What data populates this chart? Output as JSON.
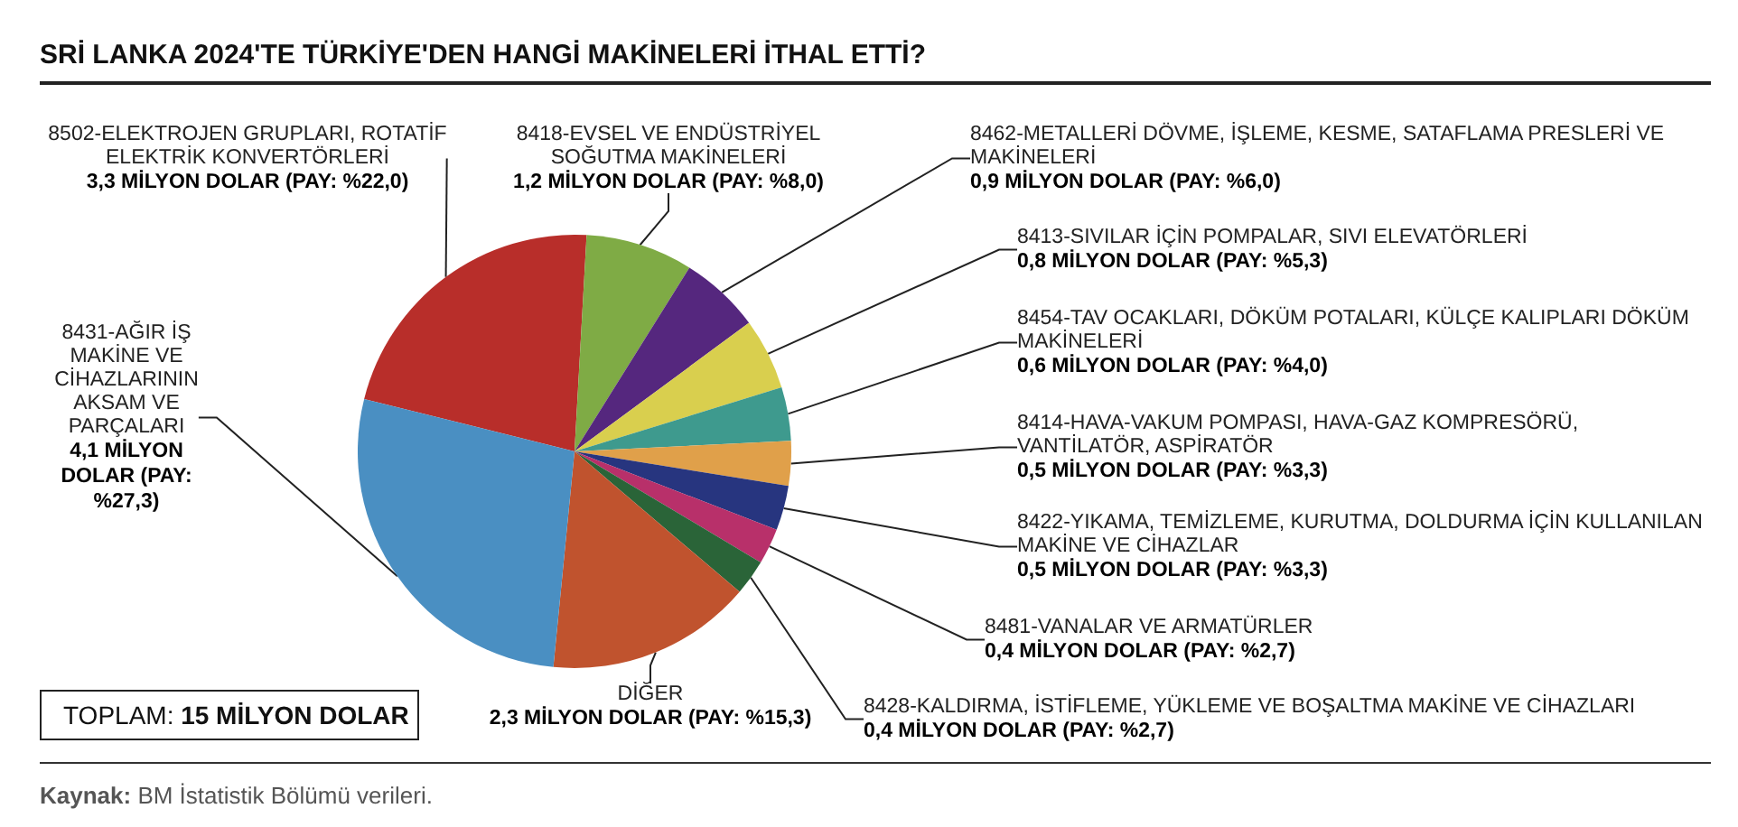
{
  "chart_data": {
    "type": "pie",
    "title": "SRİ LANKA 2024'TE TÜRKİYE'DEN HANGİ MAKİNELERİ İTHAL ETTİ?",
    "categories": [
      "8502-ELEKTROJEN GRUPLARI, ROTATİF ELEKTRİK KONVERTÖRLERİ",
      "8418-EVSEL VE ENDÜSTRİYEL SOĞUTMA MAKİNELERİ",
      "8462-METALLERİ DÖVME, İŞLEME, KESME, SATAFLAMA PRESLERİ VE MAKİNELERİ",
      "8413-SIVILAR İÇİN POMPALAR, SIVI ELEVATÖRLERİ",
      "8454-TAV OCAKLARI, DÖKÜM POTALARI, KÜLÇE KALIPLARI DÖKÜM MAKİNELERİ",
      "8414-HAVA-VAKUM POMPASI, HAVA-GAZ KOMPRESÖRÜ, VANTİLATÖR, ASPİRATÖR",
      "8422-YIKAMA, TEMİZLEME, KURUTMA, DOLDURMA İÇİN KULLANILAN MAKİNE VE CİHAZLAR",
      "8481-VANALAR VE ARMATÜRLER",
      "8428-KALDIRMA, İSTİFLEME, YÜKLEME VE BOŞALTMA MAKİNE VE CİHAZLARI",
      "DİĞER",
      "8431-AĞIR İŞ MAKİNE VE CİHAZLARININ AKSAM VE PARÇALARI"
    ],
    "values": [
      3.3,
      1.2,
      0.9,
      0.8,
      0.6,
      0.5,
      0.5,
      0.4,
      0.4,
      2.3,
      4.1
    ],
    "value_labels": [
      "3,3 MİLYON DOLAR (PAY: %22,0)",
      "1,2 MİLYON DOLAR (PAY: %8,0)",
      "0,9 MİLYON DOLAR (PAY: %6,0)",
      "0,8 MİLYON DOLAR (PAY: %5,3)",
      "0,6 MİLYON DOLAR (PAY: %4,0)",
      "0,5 MİLYON DOLAR (PAY: %3,3)",
      "0,5 MİLYON DOLAR (PAY: %3,3)",
      "0,4 MİLYON DOLAR (PAY: %2,7)",
      "0,4 MİLYON DOLAR (PAY: %2,7)",
      "2,3 MİLYON DOLAR (PAY: %15,3)",
      "4,1 MİLYON DOLAR (PAY: %27,3)"
    ],
    "colors": [
      "#b82e2a",
      "#7fab45",
      "#55277e",
      "#d9cf4e",
      "#3e9a8e",
      "#e0a04a",
      "#27357f",
      "#b8306a",
      "#2a6438",
      "#c0532e",
      "#4a8fc2"
    ],
    "annotations": [
      "TOPLAM: 15 MİLYON DOLAR",
      "Kaynak: BM İstatistik Bölümü verileri."
    ],
    "legend": false
  }
}
